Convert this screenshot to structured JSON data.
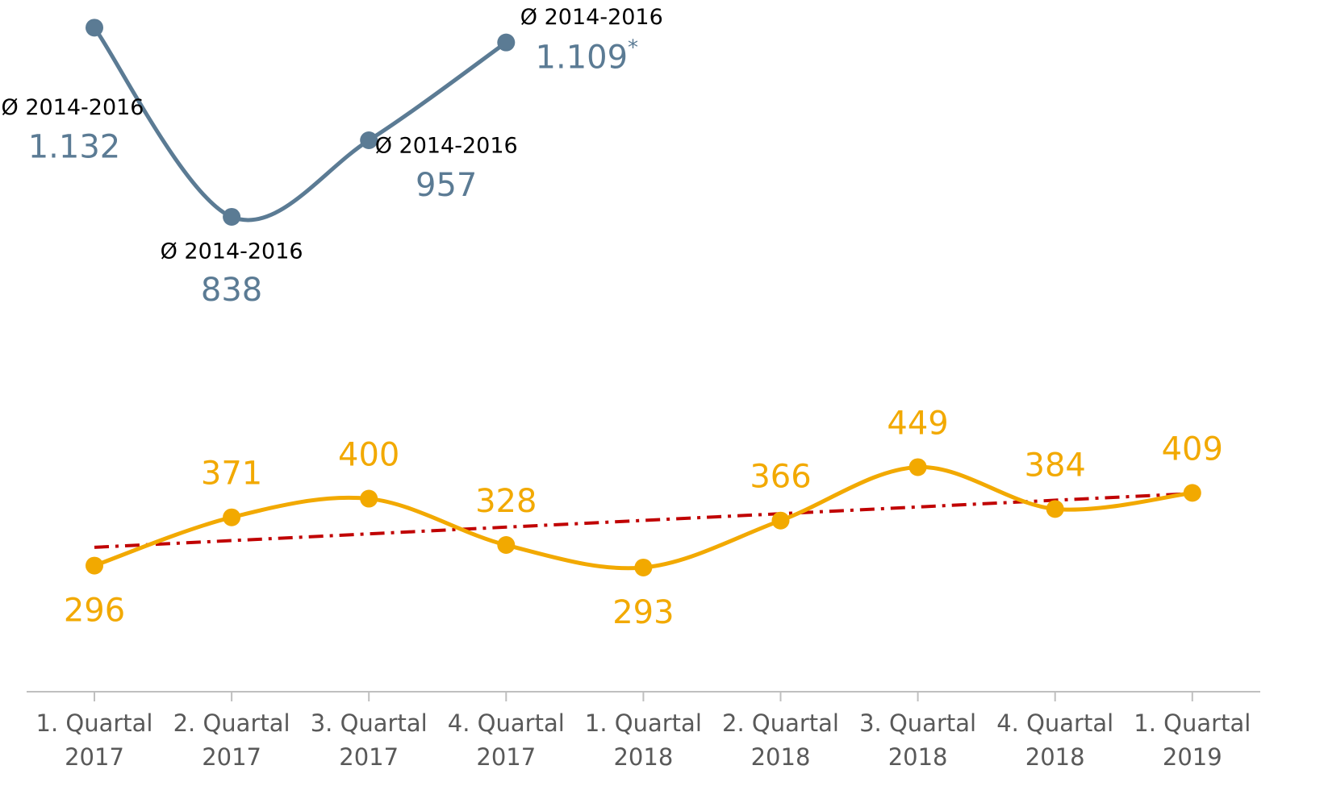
{
  "chart_data": {
    "type": "line",
    "categories": [
      "1. Quartal 2017",
      "2. Quartal 2017",
      "3. Quartal 2017",
      "4. Quartal 2017",
      "1. Quartal 2018",
      "2. Quartal 2018",
      "3. Quartal 2018",
      "4. Quartal 2018",
      "1. Quartal 2019"
    ],
    "series": [
      {
        "color": "#5b7b94",
        "values": [
          1132,
          838,
          957,
          1109,
          null,
          null,
          null,
          null,
          null
        ],
        "value_labels": [
          "1.132",
          "838",
          "957",
          "1.109",
          null,
          null,
          null,
          null,
          null
        ],
        "annotations": [
          "Ø 2014-2016",
          "Ø 2014-2016",
          "Ø 2014-2016",
          "Ø 2014-2016",
          null,
          null,
          null,
          null,
          null
        ],
        "footnote_mark": "*"
      },
      {
        "color": "#f2a900",
        "values": [
          296,
          371,
          400,
          328,
          293,
          366,
          449,
          384,
          409
        ],
        "trendline_color": "#c00000"
      }
    ],
    "ylim": [
      100,
      1175
    ],
    "smooth": true,
    "grid": false
  }
}
